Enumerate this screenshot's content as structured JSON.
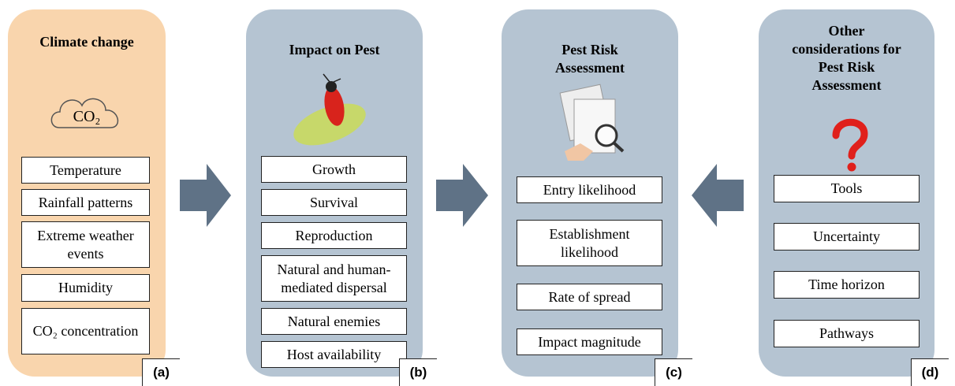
{
  "panels": [
    {
      "title": "Climate change",
      "icon_text": "CO₂",
      "items": [
        "Temperature",
        "Rainfall patterns",
        "Extreme weather events",
        "Humidity",
        "CO₂ concentration"
      ],
      "label": "(a)"
    },
    {
      "title": "Impact on Pest",
      "items": [
        "Growth",
        "Survival",
        "Reproduction",
        "Natural and human-mediated dispersal",
        "Natural enemies",
        "Host availability"
      ],
      "label": "(b)"
    },
    {
      "title": "Pest Risk Assessment",
      "items": [
        "Entry likelihood",
        "Establishment likelihood",
        "Rate of spread",
        "Impact magnitude"
      ],
      "label": "(c)"
    },
    {
      "title": "Other considerations for Pest Risk Assessment",
      "items": [
        "Tools",
        "Uncertainty",
        "Time horizon",
        "Pathways"
      ],
      "label": "(d)"
    }
  ]
}
